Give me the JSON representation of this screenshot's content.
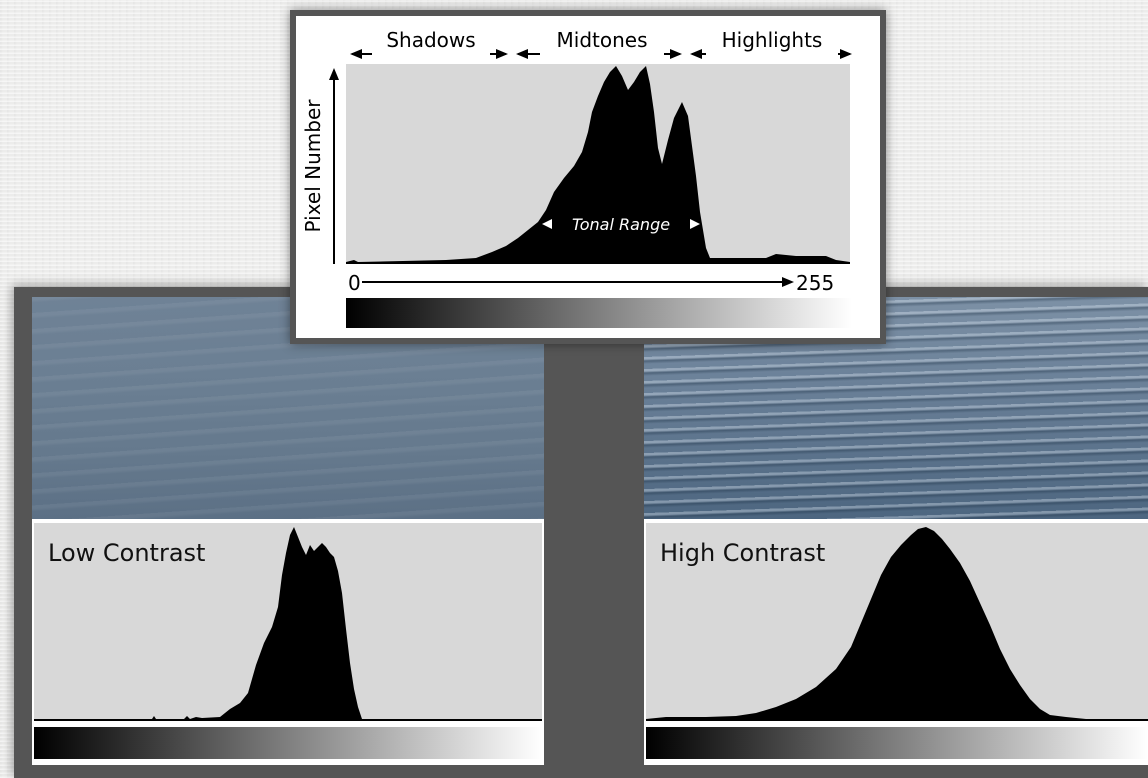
{
  "tonal_diagram": {
    "regions": [
      "Shadows",
      "Midtones",
      "Highlights"
    ],
    "y_axis_label": "Pixel Number",
    "range_label": "Tonal Range",
    "x_min": "0",
    "x_max": "255"
  },
  "low_contrast": {
    "label": "Low Contrast"
  },
  "high_contrast": {
    "label": "High Contrast"
  },
  "colors": {
    "frame": "#555555",
    "histogram_bg": "#d8d8d8",
    "histogram_fill": "#000000",
    "background": "#ececeb"
  }
}
